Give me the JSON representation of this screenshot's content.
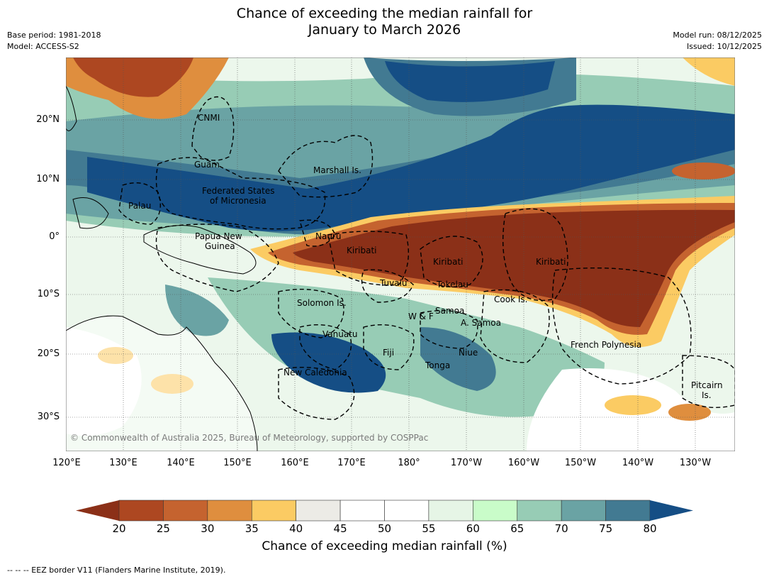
{
  "title": {
    "line1": "Chance of exceeding the median rainfall for",
    "line2": "January to March 2026"
  },
  "meta": {
    "base_period": "Base period: 1981-2018",
    "model": "Model: ACCESS-S2",
    "model_run": "Model run: 08/12/2025",
    "issued": "Issued: 10/12/2025"
  },
  "map": {
    "lat_ticks": [
      "20°N",
      "10°N",
      "0°",
      "10°S",
      "20°S",
      "30°S"
    ],
    "lon_ticks": [
      "120°E",
      "130°E",
      "140°E",
      "150°E",
      "160°E",
      "170°E",
      "180°",
      "170°W",
      "160°W",
      "150°W",
      "140°W",
      "130°W"
    ],
    "places": {
      "cnmi": "CNMI",
      "guam": "Guam",
      "marshall": "Marshall Is.",
      "fsm1": "Federated States",
      "fsm2": "of Micronesia",
      "palau": "Palau",
      "png1": "Papua New",
      "png2": "Guinea",
      "nauru": "Nauru",
      "kiribati_w": "Kiribati",
      "kiribati_c": "Kiribati",
      "kiribati_e": "Kiribati",
      "tuvalu": "Tuvalu",
      "tokelau": "Tokelau",
      "cook": "Cook Is.",
      "solomon": "Solomon Is.",
      "wf": "W & F",
      "samoa": "Samoa",
      "asamoa": "A. Samoa",
      "vanuatu": "Vanuatu",
      "fiji": "Fiji",
      "niue": "Niue",
      "tonga": "Tonga",
      "frenchpoly": "French Polynesia",
      "newcal": "New Caledonia",
      "pitcairn1": "Pitcairn",
      "pitcairn2": "Is."
    },
    "copyright": "© Commonwealth of Australia 2025, Bureau of Meteorology, supported by COSPPac"
  },
  "colorbar": {
    "title": "Chance of exceeding median rainfall (%)",
    "labels": [
      "20",
      "25",
      "30",
      "35",
      "40",
      "45",
      "50",
      "55",
      "60",
      "65",
      "70",
      "75",
      "80"
    ],
    "colors": [
      "#8b3018",
      "#ad4721",
      "#c5632f",
      "#df8e3e",
      "#fbcb63",
      "#ecebe6",
      "#ffffff",
      "#ffffff",
      "#e6f5e6",
      "#c9fcc9",
      "#97ccb5",
      "#6aa3a4",
      "#427a92",
      "#154e85"
    ]
  },
  "footnote": "--  --  -- EEZ border V11 (Flanders Marine Institute, 2019)."
}
